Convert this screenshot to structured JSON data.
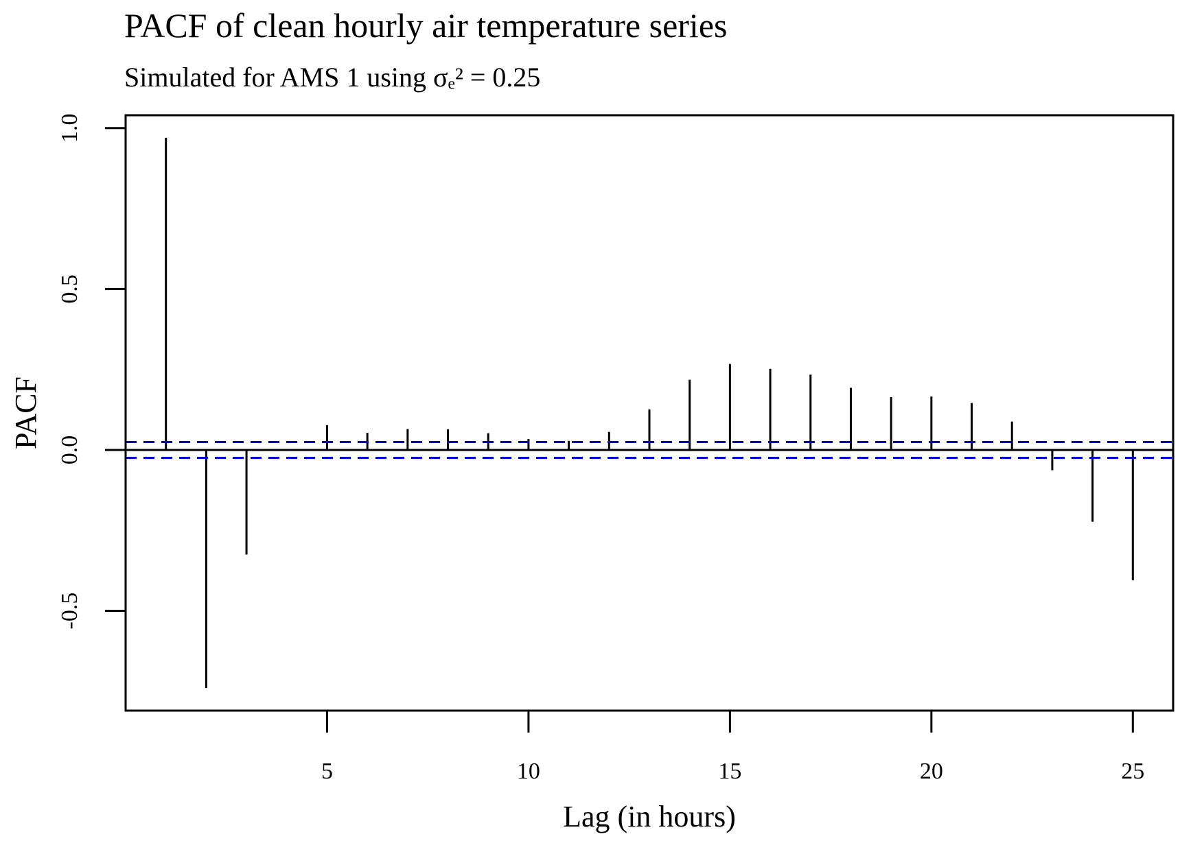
{
  "chart_data": {
    "type": "bar",
    "title": "PACF of clean hourly air temperature series",
    "subtitle": "Simulated for AMS 1 using σₑ² = 0.25",
    "xlabel": "Lag (in hours)",
    "ylabel": "PACF",
    "x": [
      1,
      2,
      3,
      4,
      5,
      6,
      7,
      8,
      9,
      10,
      11,
      12,
      13,
      14,
      15,
      16,
      17,
      18,
      19,
      20,
      21,
      22,
      23,
      24,
      25
    ],
    "values": [
      0.97,
      -0.74,
      -0.325,
      0.0,
      0.077,
      0.053,
      0.065,
      0.064,
      0.052,
      0.034,
      0.028,
      0.056,
      0.126,
      0.218,
      0.267,
      0.252,
      0.234,
      0.193,
      0.164,
      0.166,
      0.146,
      0.088,
      -0.063,
      -0.223,
      -0.405
    ],
    "xlim": [
      0,
      26
    ],
    "ylim": [
      -0.81,
      1.04
    ],
    "xticks": [
      5,
      10,
      15,
      20,
      25
    ],
    "xtick_labels": [
      "5",
      "10",
      "15",
      "20",
      "25"
    ],
    "yticks": [
      -0.5,
      0.0,
      0.5,
      1.0
    ],
    "ytick_labels": [
      "-0.5",
      "0.0",
      "0.5",
      "1.0"
    ],
    "confidence_bound": 0.0245,
    "colors": {
      "bars": "#000000",
      "confidence": "#0000ee",
      "zero_line": "#000000"
    },
    "grid": false,
    "legend": "none"
  }
}
